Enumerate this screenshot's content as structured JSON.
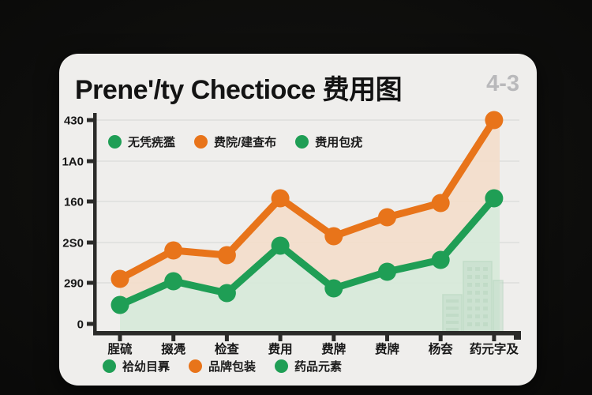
{
  "page": {
    "title": "Prene'/ty Chectioce 费用图",
    "badge": "4-3"
  },
  "colors": {
    "page_bg": "#0a0a09",
    "card_bg": "#efeeec",
    "orange": "#e8741a",
    "green": "#1f9e55",
    "peach_fill": "#f3ddcb",
    "mint_fill": "#d7e9da",
    "axis": "#2b2b29",
    "gridline": "#dddddb",
    "badge_gray": "#b9b9bb"
  },
  "chart_data": {
    "type": "line",
    "title": "Prene'/ty Chectioce 费用图",
    "categories": [
      "脭硫",
      "掇凴",
      "检查",
      "费用",
      "费牌",
      "费牌",
      "杨夽",
      "药元字及"
    ],
    "y_tick_labels": [
      "430",
      "1A0",
      "160",
      "2S0",
      "290",
      "0"
    ],
    "ylim": [
      0,
      445
    ],
    "grid": true,
    "series": [
      {
        "name": "费院/建查布",
        "color": "#e8741a",
        "marker": "circle",
        "values": [
          95,
          155,
          145,
          265,
          185,
          225,
          255,
          430
        ]
      },
      {
        "name": "赉用包疣",
        "color": "#1f9e55",
        "marker": "circle",
        "values": [
          40,
          90,
          65,
          165,
          75,
          110,
          135,
          265
        ]
      }
    ],
    "area_fills": [
      {
        "between": "orange-and-green-lines",
        "color": "#f3ddcb"
      },
      {
        "between": "green-line-and-x-axis",
        "color": "#d7e9da"
      }
    ],
    "legend_top": [
      {
        "label": "无凭㾌㺝",
        "color": "#1f9e55"
      },
      {
        "label": "费院/建查布",
        "color": "#e8741a"
      },
      {
        "label": "赉用包疣",
        "color": "#1f9e55"
      }
    ],
    "legend_bottom": [
      {
        "label": "袷幼目奡",
        "color": "#1f9e55"
      },
      {
        "label": "品牌包装",
        "color": "#e8741a"
      },
      {
        "label": "药品元素",
        "color": "#1f9e55"
      }
    ],
    "legend_position": "inside-top-left and below-x-axis",
    "decoration": "light green city skyline watermark at bottom right of plot"
  }
}
